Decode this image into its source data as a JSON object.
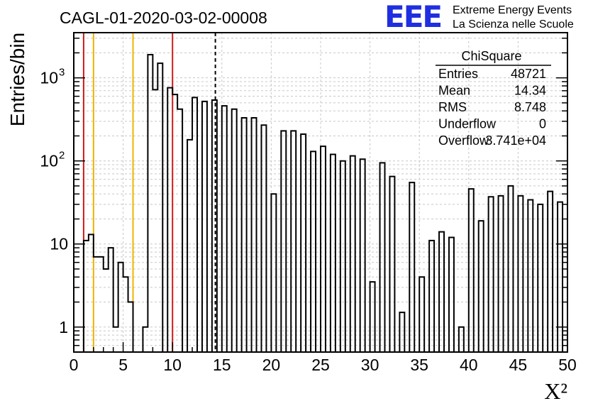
{
  "chart_data": {
    "type": "bar",
    "title": "CAGL-01-2020-03-02-00008",
    "xlabel": "X²",
    "ylabel": "Entries/bin",
    "x_range": [
      0,
      50
    ],
    "bin_width": 0.5,
    "y_scale": "log",
    "y_range": [
      0.5,
      3500
    ],
    "grid": true,
    "x_ticks": [
      "0",
      "5",
      "10",
      "15",
      "20",
      "25",
      "30",
      "35",
      "40",
      "45",
      "50"
    ],
    "y_ticks": [
      {
        "value": 1,
        "label": "1"
      },
      {
        "value": 10,
        "label": "10"
      },
      {
        "value": 100,
        "label": "10",
        "exp": "2"
      },
      {
        "value": 1000,
        "label": "10",
        "exp": "3"
      }
    ],
    "values": [
      0,
      0,
      11,
      13,
      7,
      7,
      5,
      9,
      1,
      6,
      4,
      2,
      0,
      0,
      1,
      1900,
      720,
      1500,
      0,
      760,
      630,
      420,
      0,
      180,
      580,
      0,
      520,
      0,
      540,
      0,
      460,
      0,
      420,
      0,
      330,
      0,
      330,
      0,
      270,
      0,
      40,
      0,
      230,
      0,
      230,
      0,
      210,
      0,
      130,
      0,
      150,
      0,
      120,
      0,
      100,
      0,
      115,
      0,
      105,
      0,
      3.5,
      0,
      95,
      0,
      65,
      0,
      1.5,
      0,
      55,
      0,
      4,
      0,
      11,
      0,
      14,
      0,
      12,
      0,
      1,
      0,
      46,
      0,
      19,
      0,
      37,
      0,
      38,
      0,
      50,
      0,
      38,
      0,
      34,
      0,
      30,
      0,
      43,
      0,
      32,
      0
    ],
    "vertical_lines": [
      {
        "x": 1,
        "color": "#d11a1a",
        "style": "solid"
      },
      {
        "x": 2,
        "color": "#f0b400",
        "style": "solid"
      },
      {
        "x": 6,
        "color": "#f0b400",
        "style": "solid"
      },
      {
        "x": 10,
        "color": "#d11a1a",
        "style": "solid"
      },
      {
        "x": 14.34,
        "color": "#000000",
        "style": "dashed"
      }
    ],
    "stats": {
      "name": "ChiSquare",
      "rows": [
        {
          "label": "Entries",
          "value": "48721"
        },
        {
          "label": "Mean",
          "value": "14.34"
        },
        {
          "label": "RMS",
          "value": "8.748"
        },
        {
          "label": "Underflow",
          "value": "0"
        },
        {
          "label": "Overflow",
          "value": "3.741e+04"
        }
      ]
    }
  },
  "logo": {
    "mark": "EEE",
    "line1": "Extreme Energy Events",
    "line2": "La Scienza nelle Scuole",
    "color": "#1f2fe0"
  }
}
